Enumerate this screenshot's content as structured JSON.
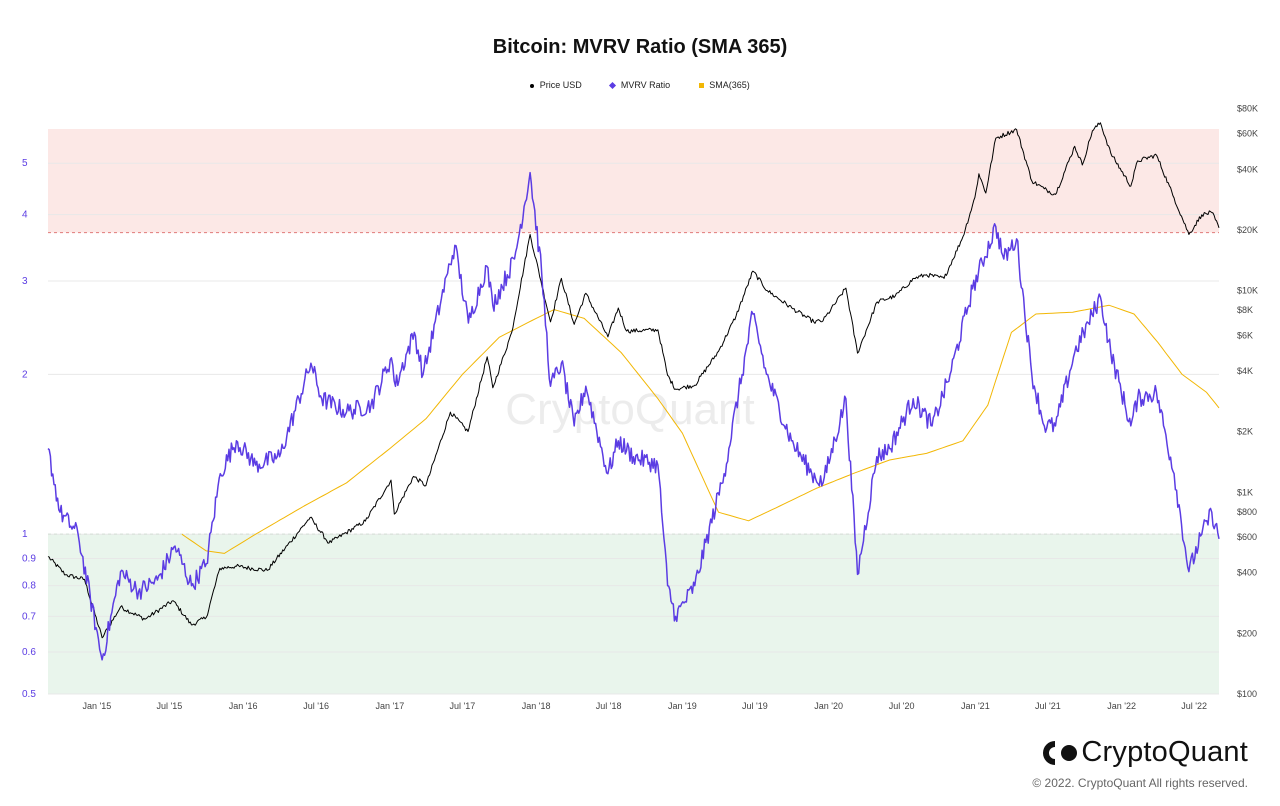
{
  "chart_data": {
    "type": "line",
    "title": "Bitcoin: MVRV Ratio (SMA 365)",
    "watermark": "CryptoQuant",
    "legend": [
      {
        "name": "Price USD",
        "color": "#000000",
        "marker": "circle"
      },
      {
        "name": "MVRV Ratio",
        "color": "#5b3ce3",
        "marker": "diamond"
      },
      {
        "name": "SMA(365)",
        "color": "#f2b705",
        "marker": "square"
      }
    ],
    "x_ticks": [
      "Jan '15",
      "Jul '15",
      "Jan '16",
      "Jul '16",
      "Jan '17",
      "Jul '17",
      "Jan '18",
      "Jul '18",
      "Jan '19",
      "Jul '19",
      "Jan '20",
      "Jul '20",
      "Jan '21",
      "Jul '21",
      "Jan '22",
      "Jul '22"
    ],
    "left_axis": {
      "scale": "log",
      "ticks": [
        "0.5",
        "0.6",
        "0.7",
        "0.8",
        "0.9",
        "1",
        "2",
        "3",
        "4",
        "5"
      ],
      "range": [
        0.5,
        5.8
      ],
      "color": "#5b3ce3"
    },
    "right_axis": {
      "scale": "log",
      "ticks": [
        "$100",
        "$200",
        "$400",
        "$600",
        "$800",
        "$1K",
        "$2K",
        "$4K",
        "$6K",
        "$8K",
        "$10K",
        "$20K",
        "$40K",
        "$60K",
        "$80K"
      ],
      "range": [
        100,
        100000
      ]
    },
    "zones": {
      "overvalued_from": 3.7,
      "undervalued_below": 1.0,
      "overvalued_color": "#fce8e6",
      "undervalued_color": "#e9f5ec"
    },
    "series": [
      {
        "name": "MVRV Ratio",
        "color": "#5b3ce3",
        "dates": [
          "2014-09-01",
          "2014-10-01",
          "2014-11-15",
          "2015-01-14",
          "2015-03-01",
          "2015-04-15",
          "2015-06-01",
          "2015-07-15",
          "2015-08-25",
          "2015-10-01",
          "2015-11-05",
          "2015-12-15",
          "2016-02-01",
          "2016-04-01",
          "2016-06-18",
          "2016-07-15",
          "2016-09-15",
          "2016-11-15",
          "2017-01-05",
          "2017-01-15",
          "2017-03-03",
          "2017-03-25",
          "2017-05-25",
          "2017-06-12",
          "2017-07-16",
          "2017-08-31",
          "2017-09-15",
          "2017-11-08",
          "2017-12-17",
          "2018-01-15",
          "2018-02-06",
          "2018-03-05",
          "2018-04-06",
          "2018-05-05",
          "2018-06-29",
          "2018-07-25",
          "2018-09-01",
          "2018-11-01",
          "2018-11-25",
          "2018-12-15",
          "2019-02-01",
          "2019-04-15",
          "2019-06-26",
          "2019-07-30",
          "2019-09-30",
          "2019-11-20",
          "2019-12-18",
          "2020-02-13",
          "2020-03-13",
          "2020-04-30",
          "2020-06-01",
          "2020-07-30",
          "2020-09-15",
          "2020-10-30",
          "2020-12-25",
          "2021-02-21",
          "2021-03-13",
          "2021-04-14",
          "2021-05-22",
          "2021-06-22",
          "2021-07-20",
          "2021-09-06",
          "2021-10-10",
          "2021-11-09",
          "2021-12-05",
          "2022-01-24",
          "2022-02-10",
          "2022-03-29",
          "2022-05-12",
          "2022-06-18",
          "2022-07-20",
          "2022-08-14",
          "2022-09-01"
        ],
        "values": [
          1.45,
          1.1,
          1.0,
          0.58,
          0.85,
          0.78,
          0.82,
          0.95,
          0.8,
          0.88,
          1.3,
          1.5,
          1.35,
          1.4,
          2.1,
          1.8,
          1.7,
          1.75,
          2.15,
          1.9,
          2.4,
          2.0,
          3.1,
          3.5,
          2.5,
          3.2,
          2.7,
          3.3,
          4.8,
          3.1,
          1.9,
          2.1,
          1.6,
          1.9,
          1.3,
          1.5,
          1.4,
          1.35,
          0.8,
          0.7,
          0.8,
          1.3,
          2.6,
          2.0,
          1.5,
          1.3,
          1.25,
          1.8,
          0.84,
          1.4,
          1.45,
          1.8,
          1.6,
          2.0,
          2.9,
          3.8,
          3.3,
          3.6,
          2.0,
          1.6,
          1.6,
          2.2,
          2.5,
          2.8,
          2.2,
          1.6,
          1.8,
          1.85,
          1.3,
          0.85,
          1.0,
          1.1,
          0.98
        ]
      },
      {
        "name": "SMA(365)",
        "color": "#f2b705",
        "dates": [
          "2015-08-01",
          "2015-10-01",
          "2015-11-15",
          "2016-02-01",
          "2016-06-01",
          "2016-09-15",
          "2017-01-01",
          "2017-04-01",
          "2017-07-01",
          "2017-10-01",
          "2018-01-01",
          "2018-02-15",
          "2018-05-01",
          "2018-08-01",
          "2018-11-01",
          "2019-01-01",
          "2019-04-01",
          "2019-06-15",
          "2019-09-01",
          "2019-12-01",
          "2020-03-01",
          "2020-06-01",
          "2020-09-01",
          "2020-12-01",
          "2021-02-01",
          "2021-04-01",
          "2021-06-01",
          "2021-09-01",
          "2021-12-01",
          "2022-02-01",
          "2022-04-01",
          "2022-06-01",
          "2022-08-01",
          "2022-09-01"
        ],
        "values": [
          1.0,
          0.93,
          0.92,
          1.0,
          1.13,
          1.25,
          1.45,
          1.65,
          2.0,
          2.35,
          2.55,
          2.65,
          2.55,
          2.2,
          1.8,
          1.55,
          1.1,
          1.06,
          1.13,
          1.22,
          1.3,
          1.38,
          1.42,
          1.5,
          1.75,
          2.4,
          2.6,
          2.62,
          2.7,
          2.6,
          2.3,
          2.0,
          1.85,
          1.73
        ]
      },
      {
        "name": "Price USD",
        "color": "#000000",
        "dates": [
          "2014-09-01",
          "2014-10-15",
          "2014-12-01",
          "2015-01-14",
          "2015-03-01",
          "2015-05-01",
          "2015-07-10",
          "2015-08-25",
          "2015-10-01",
          "2015-11-04",
          "2015-12-15",
          "2016-03-01",
          "2016-06-16",
          "2016-08-02",
          "2016-11-01",
          "2017-01-04",
          "2017-01-12",
          "2017-03-01",
          "2017-04-01",
          "2017-06-01",
          "2017-07-15",
          "2017-09-01",
          "2017-09-15",
          "2017-11-01",
          "2017-12-17",
          "2018-02-06",
          "2018-03-05",
          "2018-04-06",
          "2018-05-05",
          "2018-06-29",
          "2018-07-25",
          "2018-08-15",
          "2018-11-01",
          "2018-11-25",
          "2018-12-15",
          "2019-02-01",
          "2019-04-01",
          "2019-05-15",
          "2019-06-26",
          "2019-08-01",
          "2019-10-01",
          "2019-11-25",
          "2019-12-18",
          "2020-02-13",
          "2020-03-13",
          "2020-05-01",
          "2020-06-15",
          "2020-08-01",
          "2020-09-01",
          "2020-10-15",
          "2020-12-01",
          "2020-12-31",
          "2021-01-10",
          "2021-01-27",
          "2021-02-21",
          "2021-04-14",
          "2021-05-22",
          "2021-06-22",
          "2021-07-20",
          "2021-09-06",
          "2021-09-25",
          "2021-10-20",
          "2021-11-09",
          "2021-12-05",
          "2022-01-24",
          "2022-02-10",
          "2022-03-29",
          "2022-05-12",
          "2022-06-18",
          "2022-07-20",
          "2022-08-14",
          "2022-09-01"
        ],
        "values": [
          480,
          390,
          370,
          190,
          270,
          235,
          290,
          220,
          240,
          420,
          430,
          410,
          750,
          560,
          720,
          1150,
          780,
          1200,
          1080,
          2500,
          2000,
          4700,
          3300,
          6200,
          19000,
          7000,
          11500,
          6800,
          9700,
          5900,
          8200,
          6300,
          6400,
          3800,
          3250,
          3400,
          5000,
          7500,
          12500,
          10000,
          8200,
          7000,
          7100,
          10300,
          4900,
          8800,
          9400,
          11500,
          12000,
          11500,
          18500,
          29000,
          38000,
          30500,
          57000,
          63000,
          35000,
          32000,
          30000,
          52000,
          42000,
          62000,
          68000,
          48000,
          33000,
          44000,
          47000,
          28800,
          19000,
          23800,
          24400,
          20500
        ]
      }
    ]
  }
}
